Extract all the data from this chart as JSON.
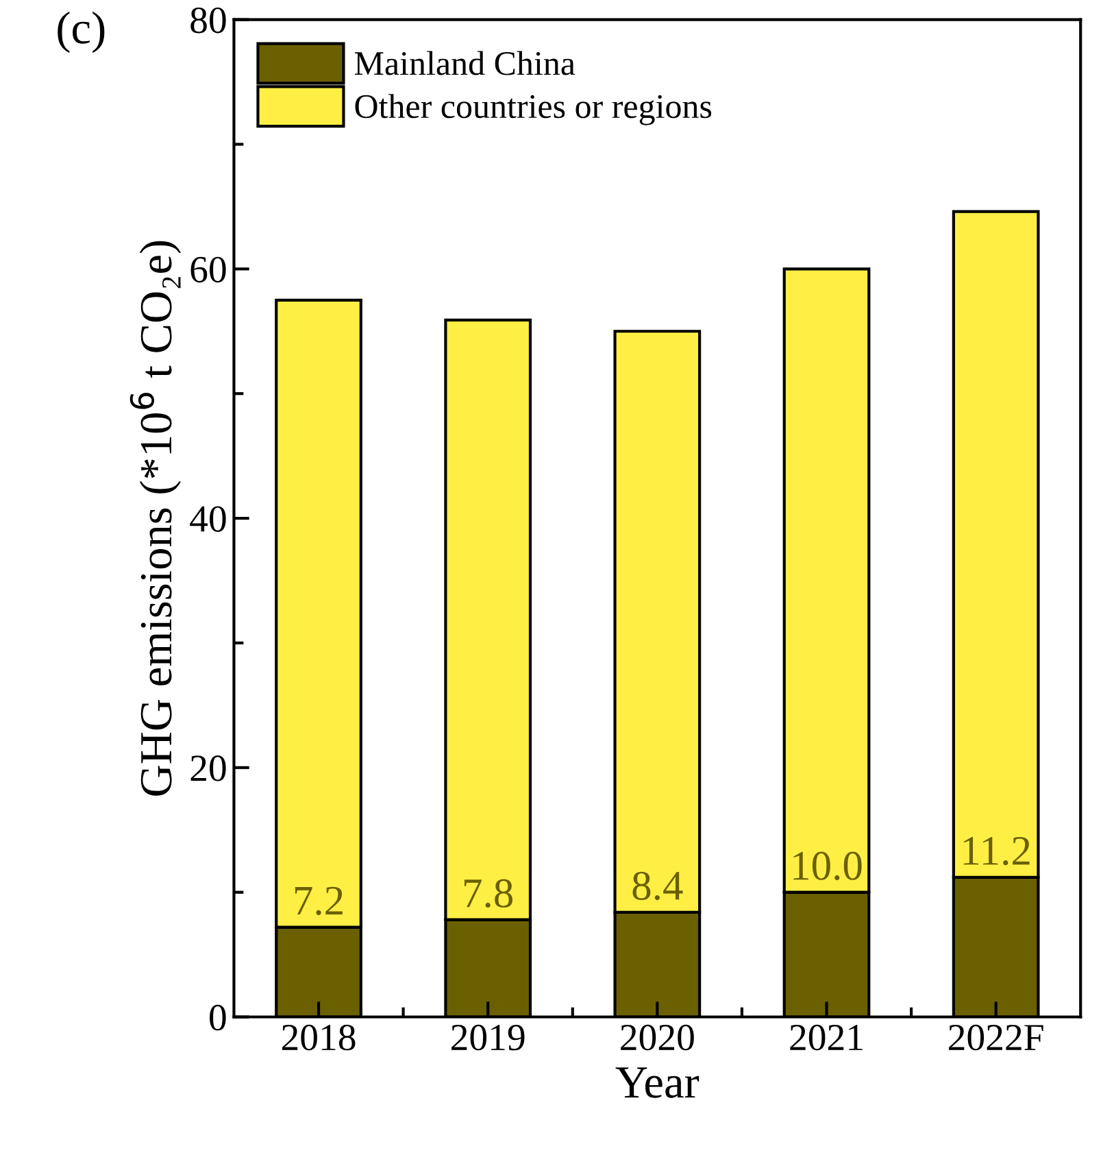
{
  "chart_data": {
    "type": "bar",
    "stacked": true,
    "xlabel": "Year",
    "ylabel": "GHG emissions (*10$^{6}$ t CO₂e)",
    "annotations": [
      "(c)"
    ],
    "categories": [
      "2018",
      "2019",
      "2020",
      "2021",
      "2022F"
    ],
    "series": [
      {
        "name": "Mainland China",
        "color": "#6b6000",
        "values": [
          7.2,
          7.8,
          8.4,
          10.0,
          11.2
        ],
        "value_labels": [
          "7.2",
          "7.8",
          "8.4",
          "10.0",
          "11.2"
        ]
      },
      {
        "name": "Other countries or regions",
        "color": "#ffef44",
        "values": [
          50.3,
          48.1,
          46.6,
          50.0,
          53.4
        ]
      }
    ],
    "ylim": [
      0,
      80
    ],
    "yticks": [
      0,
      20,
      40,
      60,
      80
    ],
    "grid": false,
    "legend": "top left"
  }
}
